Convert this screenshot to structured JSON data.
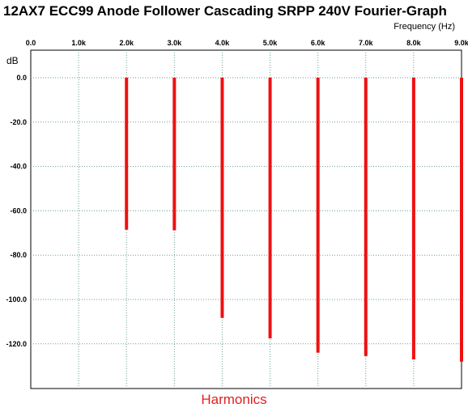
{
  "chart_data": {
    "type": "bar",
    "title": "12AX7 ECC99 Anode Follower Cascading SRPP 240V Fourier-Graph",
    "xlabel": "Frequency  (Hz)",
    "ylabel": "dB",
    "footer_label": "Harmonics",
    "x_axis_position": "top",
    "xlim": [
      0,
      9000
    ],
    "ylim": [
      -140,
      10
    ],
    "x_ticks": [
      0,
      1000,
      2000,
      3000,
      4000,
      5000,
      6000,
      7000,
      8000,
      9000
    ],
    "x_tick_labels": [
      "0.0",
      "1.0k",
      "2.0k",
      "3.0k",
      "4.0k",
      "5.0k",
      "6.0k",
      "7.0k",
      "8.0k",
      "9.0k"
    ],
    "y_ticks": [
      0,
      -20,
      -40,
      -60,
      -80,
      -100,
      -120
    ],
    "y_tick_labels": [
      "0.0",
      "-20.0",
      "-40.0",
      "-60.0",
      "-80.0",
      "-100.0",
      "-120.0"
    ],
    "grid": true,
    "bar_color": "#ee1111",
    "x": [
      2000,
      3000,
      4000,
      5000,
      6000,
      7000,
      8000,
      9000
    ],
    "values": [
      -68.5,
      -68.8,
      -108.3,
      -117.5,
      -124.0,
      -125.5,
      -127.0,
      -128.0
    ]
  }
}
